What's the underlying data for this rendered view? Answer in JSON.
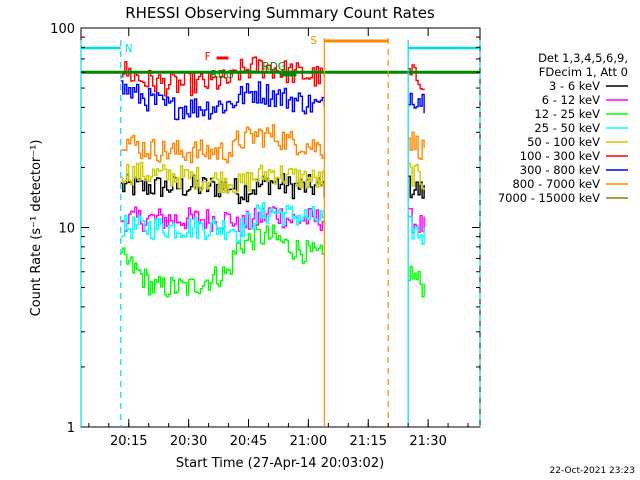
{
  "chart_data": {
    "type": "line",
    "title": "RHESSI Observing Summary Count Rates",
    "xlabel": "Start Time (27-Apr-14 20:03:02)",
    "ylabel": "Count Rate (s⁻¹ detector⁻¹)",
    "y_scale": "log",
    "ylim": [
      1,
      100
    ],
    "xlim": [
      "20:03:02",
      "21:43:00"
    ],
    "x_ticks": [
      "20:15",
      "20:30",
      "20:45",
      "21:00",
      "21:15",
      "21:30"
    ],
    "y_ticks": [
      "1",
      "10",
      "100"
    ],
    "grid": false,
    "legend_position": "right",
    "legend_header": [
      "Det 1,3,4,5,6,9,",
      "FDecim 1, Att 0"
    ],
    "series": [
      {
        "name": "3 - 6 keV",
        "color": "#000000",
        "x": [
          "20:13:00",
          "20:41:00",
          "20:42:00",
          "20:47:00",
          "20:51:00",
          "20:55:00",
          "21:04:00",
          "21:25:00",
          "21:29:00"
        ],
        "y": [
          16,
          16,
          15,
          16,
          17,
          16,
          16,
          16,
          15
        ]
      },
      {
        "name": "6 - 12 keV",
        "color": "#ff00ff",
        "x": [
          "20:13:00",
          "20:41:00",
          "20:42:00",
          "20:47:00",
          "20:51:00",
          "20:55:00",
          "21:04:00",
          "21:25:00",
          "21:29:00"
        ],
        "y": [
          11,
          11,
          10,
          11,
          12,
          11,
          11,
          11,
          10
        ]
      },
      {
        "name": "12 - 25 keV",
        "color": "#00ff00",
        "x": [
          "20:13:00",
          "20:21:00",
          "20:30:00",
          "20:40:00",
          "20:42:00",
          "20:47:00",
          "20:51:00",
          "20:55:00",
          "21:04:00",
          "21:25:00",
          "21:29:00"
        ],
        "y": [
          7,
          5,
          5,
          6,
          8,
          9,
          9,
          8,
          7,
          6,
          5
        ]
      },
      {
        "name": "25 - 50 keV",
        "color": "#00ffff",
        "x": [
          "20:13:00",
          "20:41:00",
          "20:42:00",
          "20:47:00",
          "20:51:00",
          "20:55:00",
          "21:04:00",
          "21:25:00",
          "21:29:00"
        ],
        "y": [
          10,
          10,
          9.5,
          11.5,
          12,
          11.5,
          11,
          10,
          9
        ]
      },
      {
        "name": "50 - 100 keV",
        "color": "#cccc00",
        "x": [
          "20:13:00",
          "20:41:00",
          "20:42:00",
          "20:47:00",
          "20:51:00",
          "20:55:00",
          "21:04:00",
          "21:25:00",
          "21:29:00"
        ],
        "y": [
          19,
          17,
          16,
          18,
          19,
          18,
          17,
          19,
          17
        ]
      },
      {
        "name": "100 - 300 keV",
        "color": "#ff0000",
        "x": [
          "20:13:00",
          "20:18:00",
          "20:25:00",
          "20:35:00",
          "20:41:00",
          "20:42:00",
          "20:47:00",
          "20:51:00",
          "20:55:00",
          "21:04:00",
          "21:25:00",
          "21:29:00"
        ],
        "y": [
          62,
          55,
          52,
          53,
          55,
          60,
          64,
          63,
          60,
          56,
          58,
          55
        ]
      },
      {
        "name": "300 - 800 keV",
        "color": "#0000ff",
        "x": [
          "20:13:00",
          "20:18:00",
          "20:25:00",
          "20:35:00",
          "20:41:00",
          "20:42:00",
          "20:47:00",
          "20:51:00",
          "20:55:00",
          "21:04:00",
          "21:25:00",
          "21:29:00"
        ],
        "y": [
          50,
          45,
          40,
          40,
          42,
          45,
          48,
          46,
          44,
          40,
          47,
          43
        ]
      },
      {
        "name": "800 - 7000 keV",
        "color": "#ff8800",
        "x": [
          "20:13:00",
          "20:18:00",
          "20:25:00",
          "20:35:00",
          "20:41:00",
          "20:42:00",
          "20:47:00",
          "20:51:00",
          "20:55:00",
          "21:04:00",
          "21:25:00",
          "21:29:00"
        ],
        "y": [
          28,
          25,
          24,
          24,
          24,
          27,
          29,
          29,
          27,
          25,
          28,
          24
        ]
      },
      {
        "name": "7000 - 15000 keV",
        "color": "#808000",
        "x": [],
        "y": []
      }
    ],
    "annotations": [
      {
        "label": "N",
        "color": "#00dddd",
        "kind": "night",
        "intervals": [
          [
            "20:03:02",
            "20:13:00"
          ],
          [
            "21:25:00",
            "21:43:00"
          ]
        ]
      },
      {
        "label": "F",
        "color": "#ff0000",
        "kind": "flag",
        "intervals": [
          [
            "20:37:00",
            "20:40:00"
          ]
        ]
      },
      {
        "label": "RDG",
        "color": "#008800",
        "kind": "flag",
        "intervals": [
          [
            "20:43:00",
            "20:47:00"
          ]
        ]
      },
      {
        "label": "RDG",
        "color": "#008800",
        "kind": "flag",
        "intervals": [
          [
            "20:53:00",
            "20:57:00"
          ]
        ]
      },
      {
        "label": "S",
        "color": "#ff8800",
        "kind": "saa",
        "intervals": [
          [
            "21:04:00",
            "21:20:00"
          ]
        ]
      }
    ],
    "reference_level": {
      "y": 60,
      "color": "#008800"
    },
    "data_gaps": [
      [
        "21:04:00",
        "21:25:00"
      ]
    ],
    "footer": "22-Oct-2021 23:23"
  }
}
